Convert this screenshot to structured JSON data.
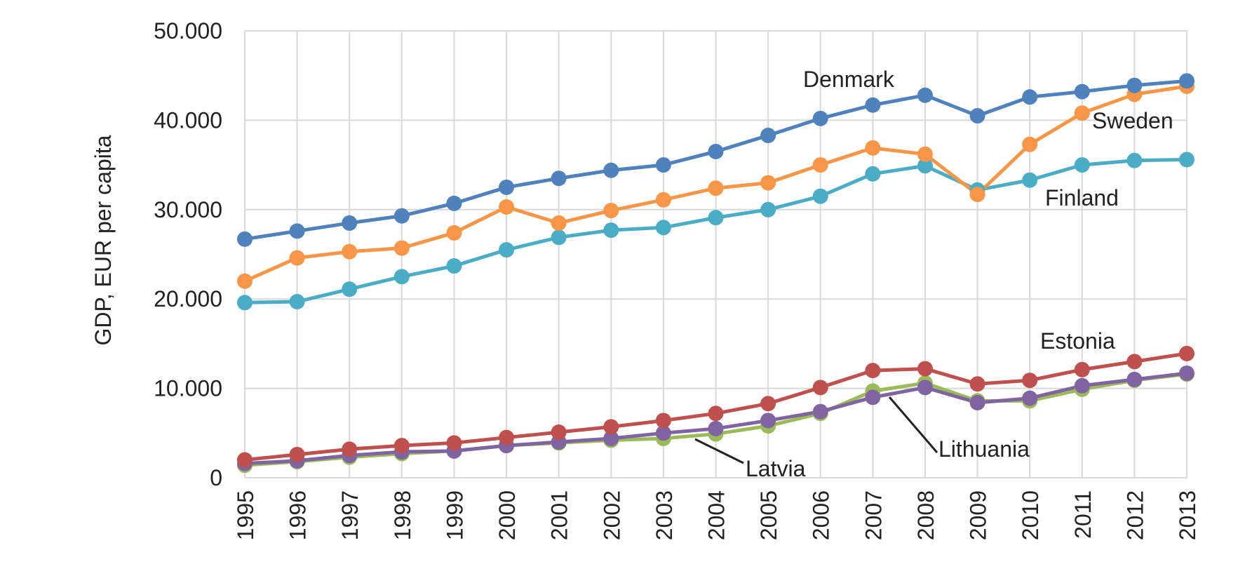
{
  "chart_data": {
    "type": "line",
    "title": "",
    "xlabel": "",
    "ylabel": "GDP, EUR per capita",
    "ylim": [
      0,
      50000
    ],
    "yticks": [
      0,
      10000,
      20000,
      30000,
      40000,
      50000
    ],
    "ytick_labels": [
      "0",
      "10.000",
      "20.000",
      "30.000",
      "40.000",
      "50.000"
    ],
    "x": [
      "1995",
      "1996",
      "1997",
      "1998",
      "1999",
      "2000",
      "2001",
      "2002",
      "2003",
      "2004",
      "2005",
      "2006",
      "2007",
      "2008",
      "2009",
      "2010",
      "2011",
      "2012",
      "2013"
    ],
    "grid": true,
    "legend": "none",
    "series": [
      {
        "name": "Denmark",
        "color": "#4f81bd",
        "values": [
          26700,
          27600,
          28500,
          29300,
          30700,
          32500,
          33500,
          34400,
          35000,
          36500,
          38300,
          40200,
          41700,
          42800,
          40500,
          42600,
          43200,
          43900,
          44400
        ]
      },
      {
        "name": "Sweden",
        "color": "#f79646",
        "values": [
          22000,
          24600,
          25300,
          25700,
          27400,
          30300,
          28500,
          29900,
          31100,
          32400,
          33000,
          35000,
          36900,
          36200,
          31700,
          37300,
          40800,
          42900,
          43800
        ]
      },
      {
        "name": "Finland",
        "color": "#4bacc6",
        "values": [
          19600,
          19700,
          21100,
          22500,
          23700,
          25500,
          26900,
          27700,
          28000,
          29100,
          30000,
          31500,
          34000,
          34900,
          32200,
          33300,
          35000,
          35500,
          35600
        ]
      },
      {
        "name": "Estonia",
        "color": "#c0504d",
        "values": [
          2000,
          2600,
          3200,
          3600,
          3900,
          4500,
          5100,
          5700,
          6400,
          7200,
          8300,
          10100,
          12000,
          12200,
          10500,
          10900,
          12100,
          13000,
          13900
        ]
      },
      {
        "name": "Lithuania",
        "color": "#8064a2",
        "values": [
          1600,
          1900,
          2500,
          2900,
          3000,
          3600,
          4000,
          4400,
          5000,
          5500,
          6400,
          7400,
          9000,
          10100,
          8400,
          8900,
          10300,
          11000,
          11700
        ]
      },
      {
        "name": "Latvia",
        "color": "#9bbb59",
        "values": [
          1400,
          1800,
          2300,
          2700,
          3000,
          3600,
          3900,
          4200,
          4400,
          4900,
          5800,
          7200,
          9700,
          10600,
          8600,
          8600,
          9900,
          10900,
          11600
        ]
      }
    ]
  }
}
